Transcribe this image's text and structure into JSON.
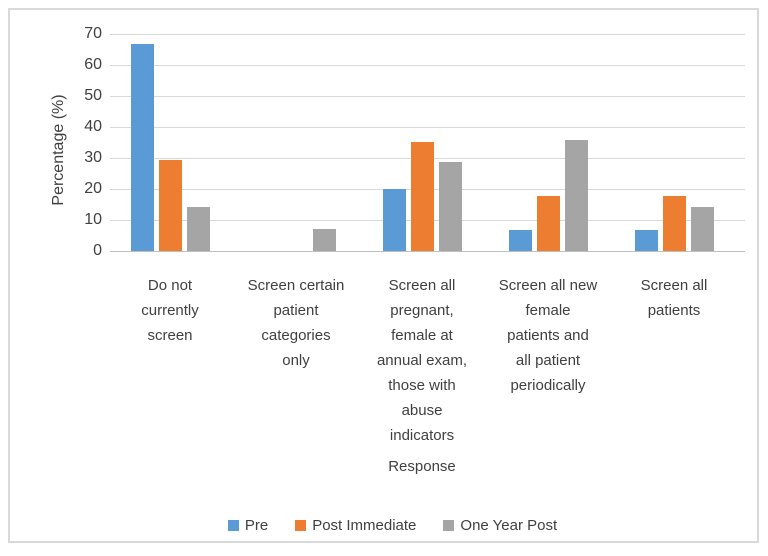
{
  "figure": {
    "background": "#FFFFFF",
    "border_color": "#D9D9D9",
    "gridline_color": "#D9D9D9",
    "axis_line_color": "#BFBFBF",
    "text_color": "#404040"
  },
  "chart_data": {
    "type": "bar",
    "title": "",
    "xlabel": "Response",
    "ylabel": "Percentage (%)",
    "ylim": [
      0,
      70
    ],
    "yticks": [
      0,
      10,
      20,
      30,
      40,
      50,
      60,
      70
    ],
    "grid": true,
    "legend_position": "bottom",
    "categories": [
      "Do not currently screen",
      "Screen certain patient categories only",
      "Screen all pregnant, female at annual exam, those with abuse indicators",
      "Screen all new female patients and all patient periodically",
      "Screen all patients"
    ],
    "categories_wrapped": [
      "Do not\ncurrently\nscreen",
      "Screen certain\npatient\ncategories\nonly",
      "Screen all\npregnant,\nfemale at\nannual exam,\nthose with\nabuse\nindicators",
      "Screen all new\nfemale\npatients and\nall patient\nperiodically",
      "Screen all\npatients"
    ],
    "series": [
      {
        "name": "Pre",
        "color": "#5B9BD5",
        "values": [
          66.7,
          0,
          20,
          6.7,
          6.7
        ]
      },
      {
        "name": "Post Immediate",
        "color": "#ED7D31",
        "values": [
          29.4,
          0,
          35.3,
          17.6,
          17.6
        ]
      },
      {
        "name": "One Year Post",
        "color": "#A5A5A5",
        "values": [
          14.3,
          7.1,
          28.6,
          35.7,
          14.3
        ]
      }
    ]
  }
}
